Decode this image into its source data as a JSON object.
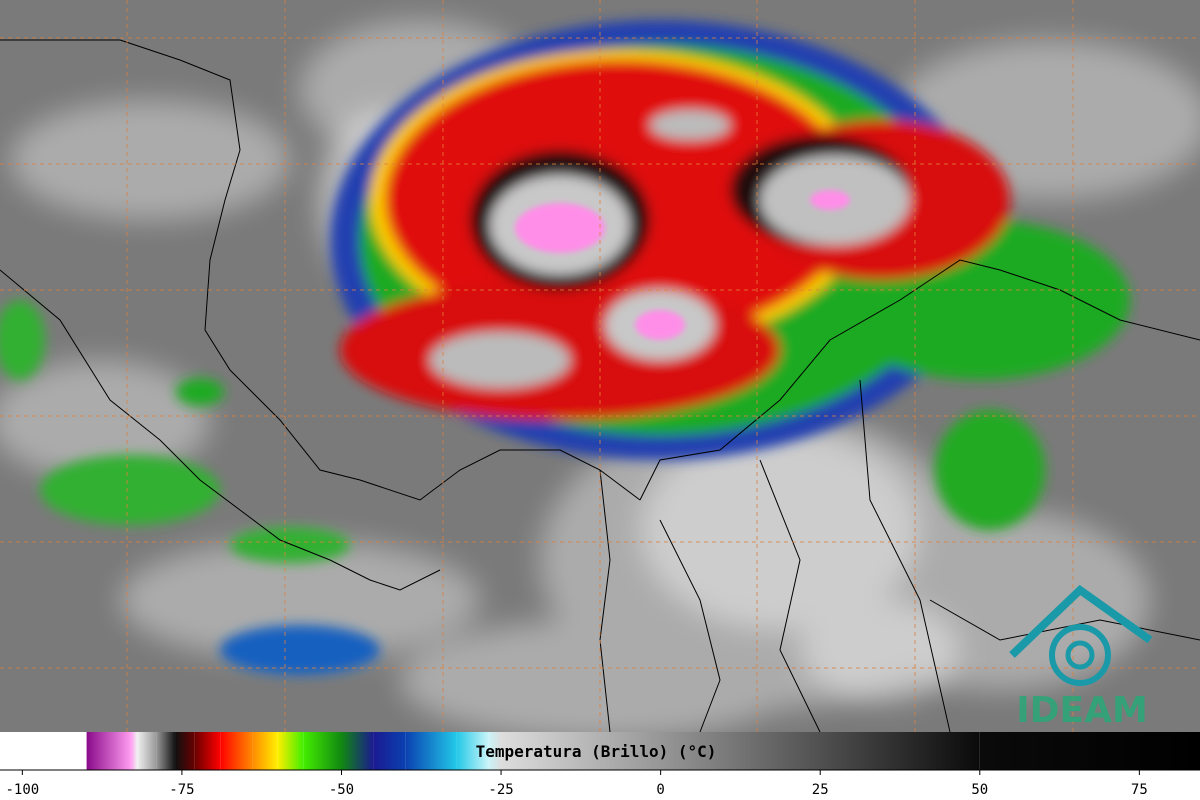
{
  "colorbar": {
    "label": "Temperatura (Brillo) (°C)",
    "xlim": [
      -103.5,
      84.5
    ],
    "xticks": [
      -100,
      -75,
      -50,
      -25,
      0,
      25,
      50,
      75
    ],
    "stops": [
      {
        "value": -103.5,
        "color": "#ffffff"
      },
      {
        "value": -90,
        "color": "#ffffff"
      },
      {
        "value": -89.9,
        "color": "#8a0a8a"
      },
      {
        "value": -83,
        "color": "#ff9cf0"
      },
      {
        "value": -82,
        "color": "#f0f0f0"
      },
      {
        "value": -79,
        "color": "#999999"
      },
      {
        "value": -76,
        "color": "#101010"
      },
      {
        "value": -73,
        "color": "#6a0000"
      },
      {
        "value": -69,
        "color": "#ff0000"
      },
      {
        "value": -64,
        "color": "#ff8800"
      },
      {
        "value": -60,
        "color": "#ffee00"
      },
      {
        "value": -56,
        "color": "#44ee00"
      },
      {
        "value": -50,
        "color": "#118811"
      },
      {
        "value": -45,
        "color": "#1a1a90"
      },
      {
        "value": -40,
        "color": "#0a40b0"
      },
      {
        "value": -32,
        "color": "#22c8e8"
      },
      {
        "value": -27,
        "color": "#c8f4f8"
      },
      {
        "value": -25,
        "color": "#dddddd"
      },
      {
        "value": 50,
        "color": "#0a0a0a"
      },
      {
        "value": 84.5,
        "color": "#000000"
      }
    ]
  },
  "logo": {
    "text": "IDEAM"
  }
}
